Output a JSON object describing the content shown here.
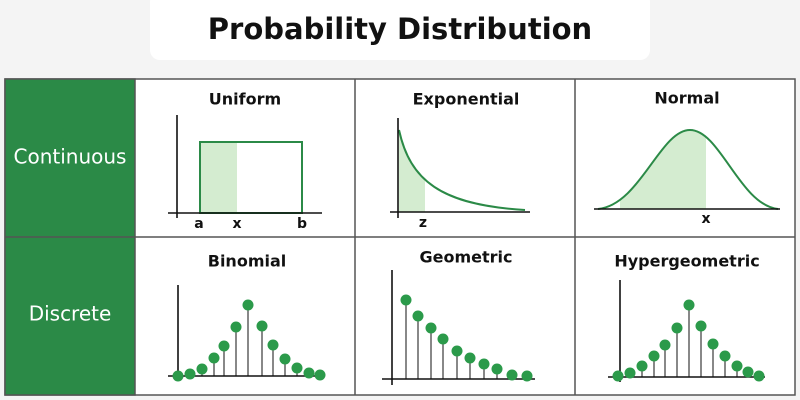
{
  "header": {
    "title": "Probability Distribution"
  },
  "rows": [
    {
      "label": "Continuous",
      "cells": [
        {
          "title": "Uniform",
          "axis_labels": [
            "a",
            "x",
            "b"
          ]
        },
        {
          "title": "Exponential",
          "axis_labels": [
            "z"
          ]
        },
        {
          "title": "Normal",
          "axis_labels": [
            "x"
          ]
        }
      ]
    },
    {
      "label": "Discrete",
      "cells": [
        {
          "title": "Binomial"
        },
        {
          "title": "Geometric"
        },
        {
          "title": "Hypergeometric"
        }
      ]
    }
  ]
}
